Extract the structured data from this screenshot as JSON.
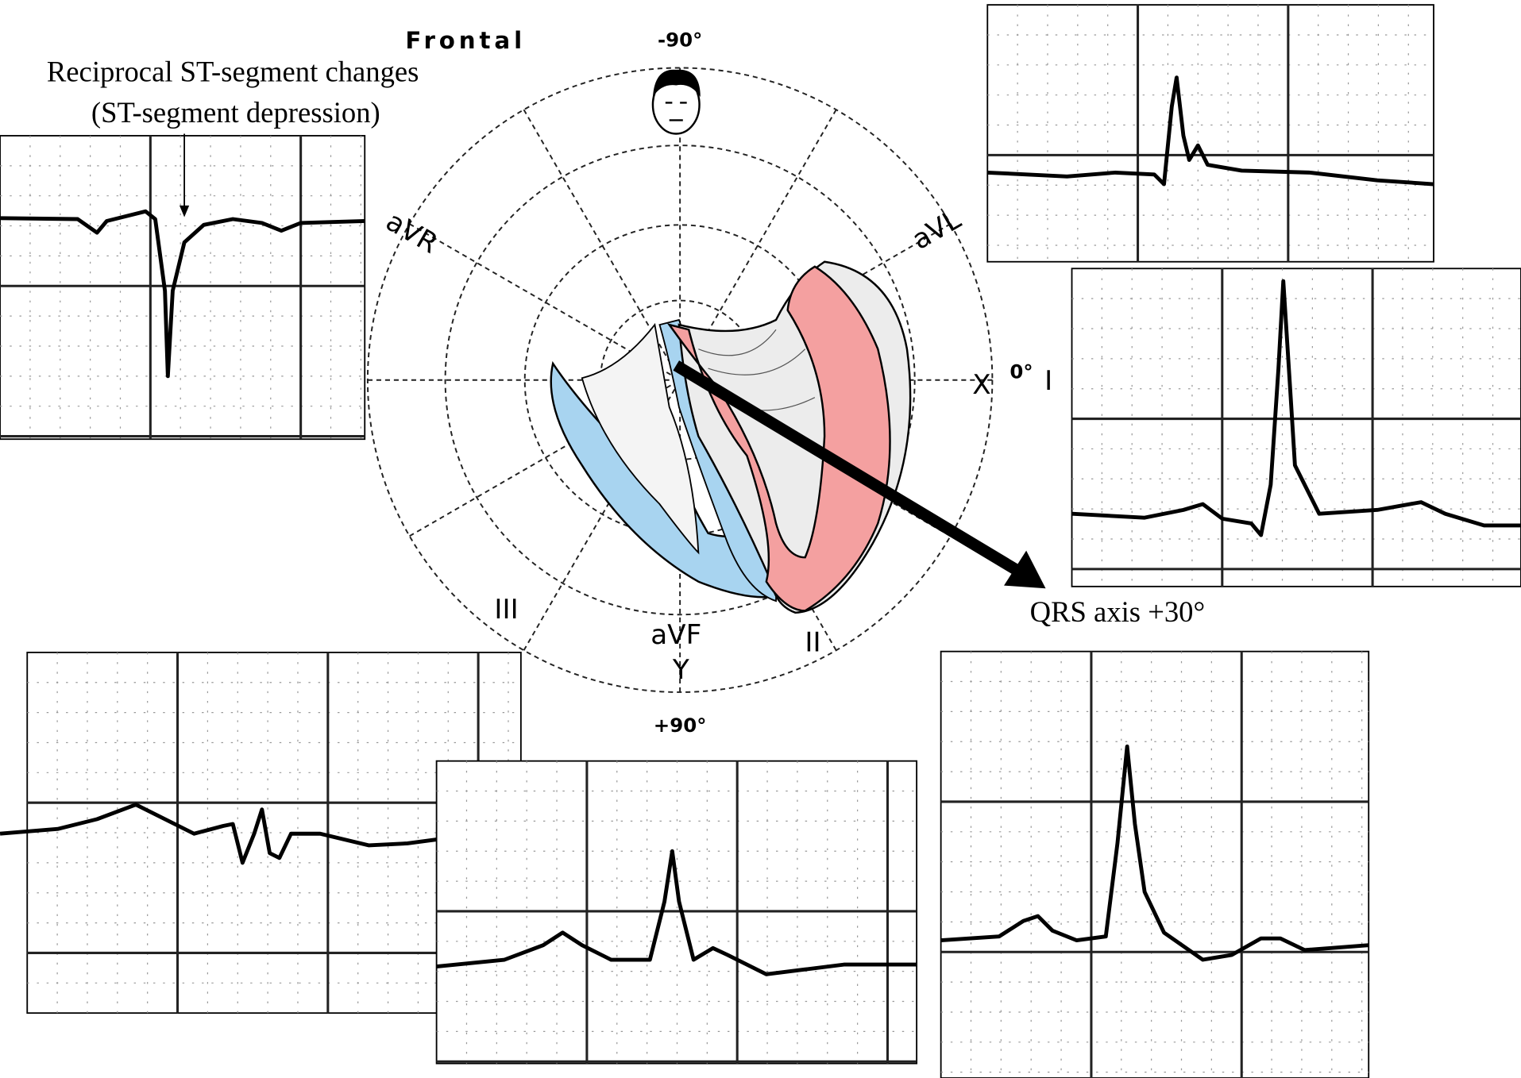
{
  "title": "Frontal",
  "angles": {
    "top": "-90°",
    "right": "0°",
    "bottom": "+90°"
  },
  "axes": {
    "x": "X",
    "y": "Y"
  },
  "leads": {
    "avr": "aVR",
    "avl": "aVL",
    "i": "I",
    "ii": "II",
    "iii": "III",
    "avf": "aVF"
  },
  "annotations": {
    "reciprocal_line1": "Reciprocal ST-segment changes",
    "reciprocal_line2": "(ST-segment depression)",
    "qrs_axis": "QRS axis +30°"
  }
}
